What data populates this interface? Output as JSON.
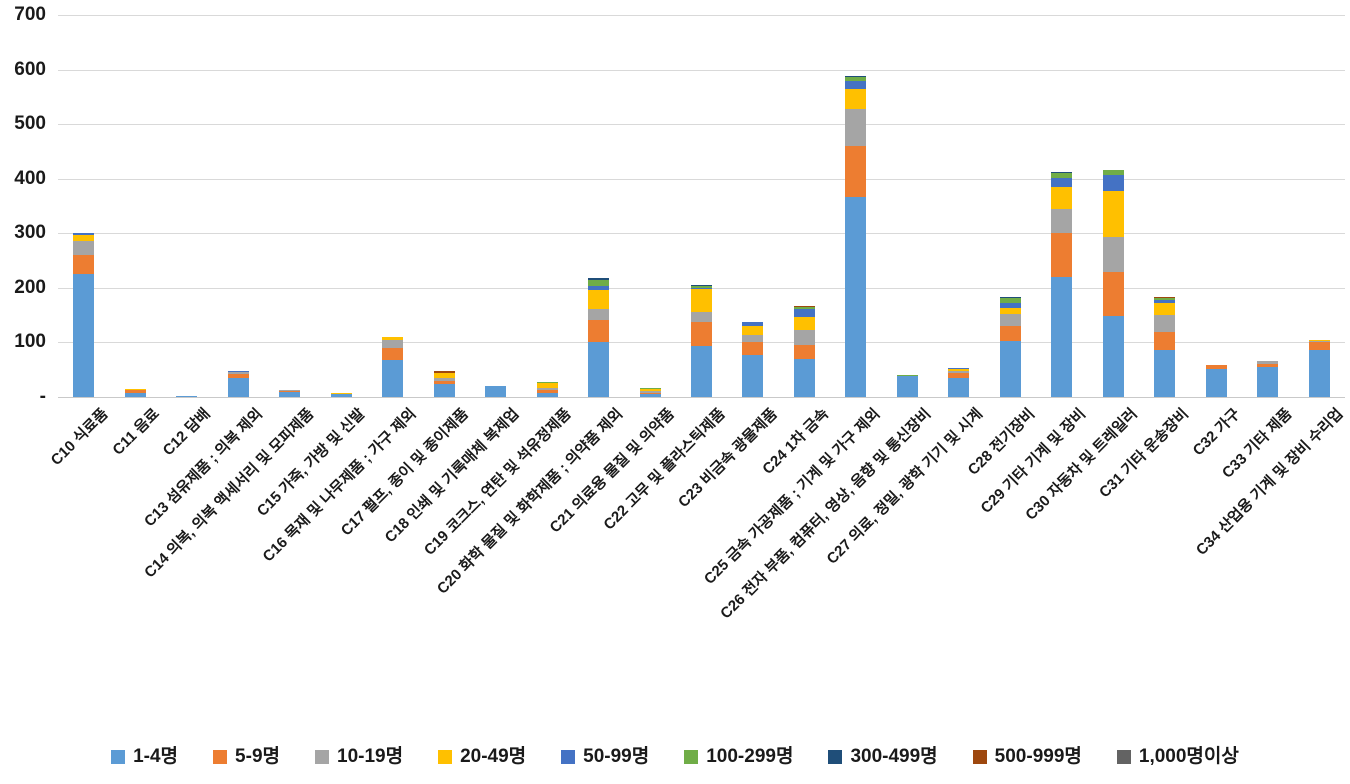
{
  "page": {
    "background": "#ffffff"
  },
  "chart_data": {
    "type": "bar",
    "stacked": true,
    "title": "",
    "xlabel": "",
    "ylabel": "",
    "ylim": [
      0,
      700
    ],
    "grid": true,
    "legend_position": "bottom",
    "y_axis": {
      "max": 700,
      "step": 100,
      "tick_labels": [
        "700",
        "600",
        "500",
        "400",
        "300",
        "200",
        "100",
        "-"
      ]
    },
    "categories": [
      "C10 식료품",
      "C11 음료",
      "C12 담배",
      "C13 섬유제품 ; 의복 제외",
      "C14 의복, 의복 액세서리 및 모피제품",
      "C15 가죽, 가방 및 신발",
      "C16 목재 및 나무제품 ; 가구 제외",
      "C17 펄프, 종이 및 종이제품",
      "C18 인쇄 및 기록매체 복제업",
      "C19 코크스, 연탄 및 석유정제품",
      "C20 화학 물질 및 화학제품 ; 의약품 제외",
      "C21 의료용 물질 및 의약품",
      "C22 고무 및 플라스틱제품",
      "C23 비금속 광물제품",
      "C24 1차 금속",
      "C25 금속 가공제품 ; 기계 및 가구 제외",
      "C26 전자 부품, 컴퓨터, 영상, 음향 및 통신장비",
      "C27 의료, 정밀, 광학 기기 및 시계",
      "C28 전기장비",
      "C29 기타 기계 및 장비",
      "C30 자동차 및 트레일러",
      "C31 기타 운송장비",
      "C32 가구",
      "C33 기타 제품",
      "C34 산업용 기계 및 장비 수리업"
    ],
    "series": [
      {
        "name": "1-4명",
        "color": "#5B9BD5",
        "values": [
          225,
          8,
          1,
          34,
          9,
          5,
          68,
          23,
          20,
          7,
          101,
          5,
          94,
          77,
          69,
          367,
          38,
          34,
          103,
          220,
          149,
          87,
          52,
          55,
          87
        ]
      },
      {
        "name": "5-9명",
        "color": "#ED7D31",
        "values": [
          36,
          4,
          0,
          8,
          2,
          1,
          22,
          7,
          0,
          5,
          40,
          3,
          43,
          24,
          27,
          93,
          0,
          10,
          28,
          81,
          81,
          32,
          6,
          5,
          14
        ]
      },
      {
        "name": "10-19명",
        "color": "#A5A5A5",
        "values": [
          24,
          1,
          0,
          4,
          2,
          0,
          14,
          5,
          0,
          4,
          21,
          3,
          18,
          13,
          27,
          67,
          1,
          3,
          22,
          43,
          63,
          31,
          0,
          6,
          1
        ]
      },
      {
        "name": "20-49명",
        "color": "#FFC000",
        "values": [
          11,
          2,
          0,
          0,
          0,
          2,
          6,
          9,
          0,
          9,
          35,
          4,
          43,
          17,
          23,
          37,
          0,
          5,
          11,
          41,
          84,
          23,
          1,
          0,
          2
        ]
      },
      {
        "name": "50-99명",
        "color": "#4472C4",
        "values": [
          5,
          0,
          0,
          1,
          0,
          0,
          0,
          0,
          0,
          0,
          6,
          0,
          2,
          6,
          15,
          16,
          0,
          2,
          9,
          17,
          29,
          4,
          0,
          0,
          0
        ]
      },
      {
        "name": "100-299명",
        "color": "#70AD47",
        "values": [
          0,
          0,
          0,
          0,
          0,
          0,
          0,
          0,
          0,
          2,
          12,
          1,
          3,
          0,
          4,
          7,
          2,
          0,
          9,
          9,
          10,
          4,
          0,
          0,
          0
        ]
      },
      {
        "name": "300-499명",
        "color": "#1F4E79",
        "values": [
          0,
          0,
          0,
          0,
          0,
          0,
          0,
          0,
          0,
          0,
          3,
          0,
          2,
          0,
          0,
          2,
          0,
          0,
          2,
          2,
          0,
          0,
          0,
          0,
          0
        ]
      },
      {
        "name": "500-999명",
        "color": "#9E480E",
        "values": [
          0,
          0,
          0,
          0,
          0,
          0,
          0,
          3,
          0,
          0,
          0,
          0,
          0,
          0,
          2,
          0,
          0,
          0,
          0,
          0,
          0,
          3,
          0,
          0,
          0
        ]
      },
      {
        "name": "1,000명이상",
        "color": "#636363",
        "values": [
          0,
          0,
          0,
          0,
          0,
          0,
          0,
          0,
          0,
          1,
          0,
          0,
          0,
          0,
          0,
          0,
          0,
          0,
          0,
          0,
          0,
          0,
          0,
          0,
          0
        ]
      }
    ]
  }
}
